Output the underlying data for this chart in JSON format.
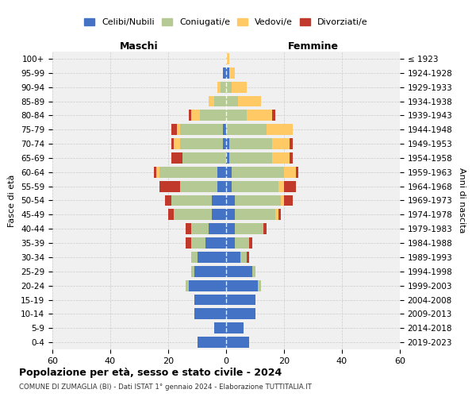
{
  "age_groups": [
    "0-4",
    "5-9",
    "10-14",
    "15-19",
    "20-24",
    "25-29",
    "30-34",
    "35-39",
    "40-44",
    "45-49",
    "50-54",
    "55-59",
    "60-64",
    "65-69",
    "70-74",
    "75-79",
    "80-84",
    "85-89",
    "90-94",
    "95-99",
    "100+"
  ],
  "birth_years": [
    "2019-2023",
    "2014-2018",
    "2009-2013",
    "2004-2008",
    "1999-2003",
    "1994-1998",
    "1989-1993",
    "1984-1988",
    "1979-1983",
    "1974-1978",
    "1969-1973",
    "1964-1968",
    "1959-1963",
    "1954-1958",
    "1949-1953",
    "1944-1948",
    "1939-1943",
    "1934-1938",
    "1929-1933",
    "1924-1928",
    "≤ 1923"
  ],
  "male": {
    "celibi": [
      10,
      4,
      11,
      11,
      13,
      11,
      10,
      7,
      6,
      5,
      5,
      3,
      3,
      0,
      1,
      1,
      0,
      0,
      0,
      1,
      0
    ],
    "coniugati": [
      0,
      0,
      0,
      0,
      1,
      1,
      2,
      5,
      6,
      13,
      14,
      13,
      20,
      15,
      15,
      15,
      9,
      4,
      2,
      0,
      0
    ],
    "vedovi": [
      0,
      0,
      0,
      0,
      0,
      0,
      0,
      0,
      0,
      0,
      0,
      0,
      1,
      0,
      2,
      1,
      3,
      2,
      1,
      0,
      0
    ],
    "divorziati": [
      0,
      0,
      0,
      0,
      0,
      0,
      0,
      2,
      2,
      2,
      2,
      7,
      1,
      4,
      1,
      2,
      1,
      0,
      0,
      0,
      0
    ]
  },
  "female": {
    "nubili": [
      8,
      6,
      10,
      10,
      11,
      9,
      5,
      3,
      3,
      3,
      3,
      2,
      2,
      1,
      1,
      0,
      0,
      0,
      0,
      1,
      0
    ],
    "coniugate": [
      0,
      0,
      0,
      0,
      1,
      1,
      2,
      5,
      10,
      14,
      16,
      16,
      18,
      15,
      15,
      14,
      7,
      4,
      2,
      0,
      0
    ],
    "vedove": [
      0,
      0,
      0,
      0,
      0,
      0,
      0,
      0,
      0,
      1,
      1,
      2,
      4,
      6,
      6,
      9,
      9,
      8,
      5,
      2,
      1
    ],
    "divorziate": [
      0,
      0,
      0,
      0,
      0,
      0,
      1,
      1,
      1,
      1,
      3,
      4,
      1,
      1,
      1,
      0,
      1,
      0,
      0,
      0,
      0
    ]
  },
  "colors": {
    "celibi_nubili": "#4472c4",
    "coniugati": "#b5c994",
    "vedovi": "#ffc966",
    "divorziati": "#c0392b"
  },
  "xlim": 60,
  "title": "Popolazione per età, sesso e stato civile - 2024",
  "subtitle": "COMUNE DI ZUMAGLIA (BI) - Dati ISTAT 1° gennaio 2024 - Elaborazione TUTTITALIA.IT",
  "ylabel_left": "Fasce di età",
  "ylabel_right": "Anni di nascita",
  "xlabel_left": "Maschi",
  "xlabel_right": "Femmine",
  "legend_labels": [
    "Celibi/Nubili",
    "Coniugati/e",
    "Vedovi/e",
    "Divorziati/e"
  ],
  "bg_color": "#f0f0f0"
}
